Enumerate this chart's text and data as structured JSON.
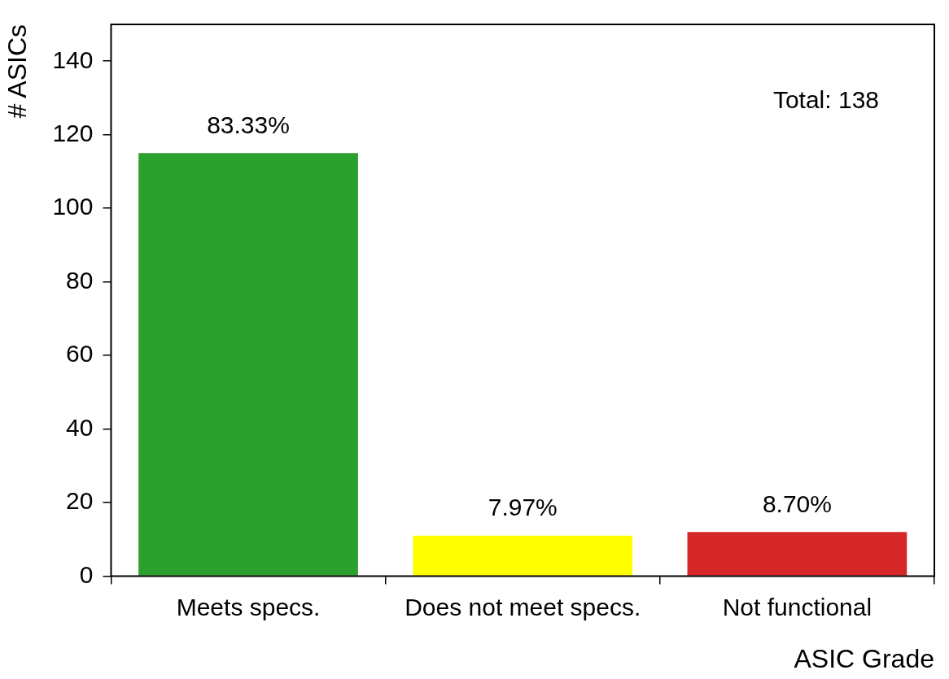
{
  "chart_data": {
    "type": "bar",
    "xlabel": "ASIC Grade",
    "ylabel": "# ASICs",
    "categories": [
      "Meets specs.",
      "Does not meet specs.",
      "Not functional"
    ],
    "values": [
      115,
      11,
      12
    ],
    "colors": [
      "#2ca02c",
      "#ffff00",
      "#d62728"
    ],
    "ylim": [
      0,
      150
    ],
    "yticks": [
      0,
      20,
      40,
      60,
      80,
      100,
      120,
      140
    ],
    "grid": false,
    "legend": false,
    "annotations": [
      "Total: 138",
      {
        "text": "83.33%",
        "x": "Meets specs.",
        "y": 115
      },
      {
        "text": "7.97%",
        "x": "Does not meet specs.",
        "y": 11
      },
      {
        "text": "8.70%",
        "x": "Not functional",
        "y": 12
      }
    ]
  }
}
